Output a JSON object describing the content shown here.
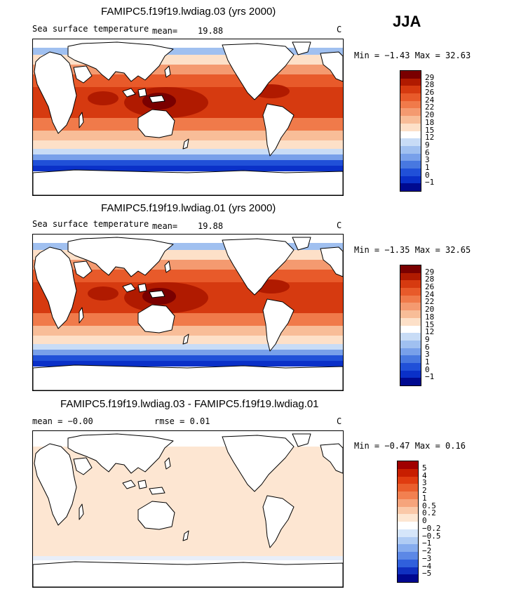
{
  "season": "JJA",
  "panels": [
    {
      "title": "FAMIPC5.f19f19.lwdiag.03 (yrs 2000)",
      "variable": "Sea surface temperature",
      "mean_label": "mean=",
      "mean_value": "19.88",
      "units": "C",
      "minmax": "Min =  −1.43 Max =  32.63",
      "colorbar": {
        "labels": [
          "29",
          "28",
          "26",
          "24",
          "22",
          "20",
          "18",
          "15",
          "12",
          "9",
          "6",
          "3",
          "1",
          "0",
          "−1"
        ],
        "colors": [
          "#7a0000",
          "#b01a00",
          "#d63a10",
          "#e85a2a",
          "#f07a4a",
          "#f49a70",
          "#f8bd98",
          "#fde0c8",
          "#ffffff",
          "#c8dcf6",
          "#a0c0f0",
          "#78a0ea",
          "#4878e0",
          "#2050d8",
          "#0a30c8",
          "#000a90"
        ]
      }
    },
    {
      "title": "FAMIPC5.f19f19.lwdiag.01 (yrs 2000)",
      "variable": "Sea surface temperature",
      "mean_label": "mean=",
      "mean_value": "19.88",
      "units": "C",
      "minmax": "Min =  −1.35 Max =  32.65",
      "colorbar": {
        "labels": [
          "29",
          "28",
          "26",
          "24",
          "22",
          "20",
          "18",
          "15",
          "12",
          "9",
          "6",
          "3",
          "1",
          "0",
          "−1"
        ],
        "colors": [
          "#7a0000",
          "#b01a00",
          "#d63a10",
          "#e85a2a",
          "#f07a4a",
          "#f49a70",
          "#f8bd98",
          "#fde0c8",
          "#ffffff",
          "#c8dcf6",
          "#a0c0f0",
          "#78a0ea",
          "#4878e0",
          "#2050d8",
          "#0a30c8",
          "#000a90"
        ]
      }
    },
    {
      "title": "FAMIPC5.f19f19.lwdiag.03 - FAMIPC5.f19f19.lwdiag.01",
      "mean_text": "mean =  −0.00",
      "rmse_text": "rmse =   0.01",
      "units": "C",
      "minmax": "Min =  −0.47 Max =   0.16",
      "colorbar": {
        "labels": [
          "5",
          "4",
          "3",
          "2",
          "1",
          "0.5",
          "0.2",
          "0",
          "−0.2",
          "−0.5",
          "−1",
          "−2",
          "−3",
          "−4",
          "−5"
        ],
        "colors": [
          "#a00000",
          "#c81e00",
          "#e03c10",
          "#ea5e2c",
          "#f28050",
          "#f6a47c",
          "#fac8a8",
          "#fde6d2",
          "#ffffff",
          "#d6e6fa",
          "#b0ccf4",
          "#86acee",
          "#5c88e6",
          "#3060dc",
          "#1030c0",
          "#000890"
        ]
      }
    }
  ]
}
